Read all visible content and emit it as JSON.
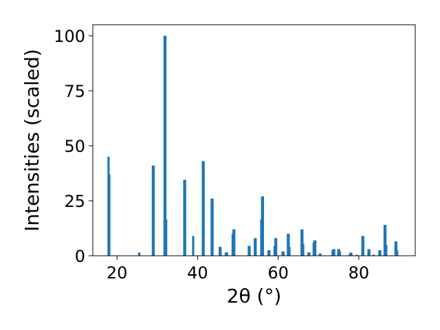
{
  "chart_data": {
    "type": "bar",
    "xlabel": "2θ (°)",
    "ylabel": "Intensities (scaled)",
    "xlim": [
      14,
      94
    ],
    "ylim": [
      0,
      105
    ],
    "xticks": [
      20,
      40,
      60,
      80
    ],
    "yticks": [
      0,
      25,
      50,
      75,
      100
    ],
    "bar_color": "#1f77b4",
    "grid": false,
    "peaks": [
      {
        "x": 17.9,
        "y": 45
      },
      {
        "x": 18.1,
        "y": 37
      },
      {
        "x": 25.5,
        "y": 1.5
      },
      {
        "x": 28.9,
        "y": 41
      },
      {
        "x": 29.1,
        "y": 41
      },
      {
        "x": 31.8,
        "y": 100
      },
      {
        "x": 32.0,
        "y": 100
      },
      {
        "x": 32.2,
        "y": 16.5
      },
      {
        "x": 36.7,
        "y": 34.5
      },
      {
        "x": 36.9,
        "y": 34.5
      },
      {
        "x": 38.9,
        "y": 9
      },
      {
        "x": 41.3,
        "y": 43
      },
      {
        "x": 41.5,
        "y": 43
      },
      {
        "x": 43.5,
        "y": 26
      },
      {
        "x": 43.7,
        "y": 26
      },
      {
        "x": 45.5,
        "y": 4
      },
      {
        "x": 45.7,
        "y": 4
      },
      {
        "x": 47.0,
        "y": 1.5
      },
      {
        "x": 47.3,
        "y": 1.5
      },
      {
        "x": 48.7,
        "y": 10
      },
      {
        "x": 48.9,
        "y": 12
      },
      {
        "x": 49.1,
        "y": 12
      },
      {
        "x": 52.7,
        "y": 4.5
      },
      {
        "x": 52.9,
        "y": 4.5
      },
      {
        "x": 54.2,
        "y": 8
      },
      {
        "x": 54.4,
        "y": 8
      },
      {
        "x": 55.8,
        "y": 16.5
      },
      {
        "x": 56.0,
        "y": 27
      },
      {
        "x": 56.2,
        "y": 27
      },
      {
        "x": 57.6,
        "y": 2.5
      },
      {
        "x": 57.8,
        "y": 2.5
      },
      {
        "x": 59.1,
        "y": 4.5
      },
      {
        "x": 59.3,
        "y": 8
      },
      {
        "x": 59.5,
        "y": 8
      },
      {
        "x": 61.1,
        "y": 2
      },
      {
        "x": 61.3,
        "y": 2
      },
      {
        "x": 62.4,
        "y": 10
      },
      {
        "x": 62.6,
        "y": 10
      },
      {
        "x": 62.8,
        "y": 4
      },
      {
        "x": 65.8,
        "y": 12
      },
      {
        "x": 66.0,
        "y": 12
      },
      {
        "x": 66.2,
        "y": 5.5
      },
      {
        "x": 67.5,
        "y": 1.5
      },
      {
        "x": 67.7,
        "y": 1.5
      },
      {
        "x": 68.8,
        "y": 6
      },
      {
        "x": 69.0,
        "y": 7
      },
      {
        "x": 69.2,
        "y": 7
      },
      {
        "x": 70.3,
        "y": 1
      },
      {
        "x": 70.5,
        "y": 1
      },
      {
        "x": 73.5,
        "y": 2.5
      },
      {
        "x": 73.7,
        "y": 3
      },
      {
        "x": 73.9,
        "y": 3
      },
      {
        "x": 74.9,
        "y": 3
      },
      {
        "x": 75.1,
        "y": 3
      },
      {
        "x": 75.3,
        "y": 2
      },
      {
        "x": 77.8,
        "y": 1
      },
      {
        "x": 78.0,
        "y": 1.5
      },
      {
        "x": 78.2,
        "y": 1
      },
      {
        "x": 79.5,
        "y": 0.5
      },
      {
        "x": 80.9,
        "y": 9
      },
      {
        "x": 81.1,
        "y": 9
      },
      {
        "x": 82.4,
        "y": 3
      },
      {
        "x": 82.6,
        "y": 3
      },
      {
        "x": 83.7,
        "y": 0.5
      },
      {
        "x": 85.1,
        "y": 2.5
      },
      {
        "x": 85.3,
        "y": 2.5
      },
      {
        "x": 86.4,
        "y": 14
      },
      {
        "x": 86.6,
        "y": 14
      },
      {
        "x": 86.8,
        "y": 5
      },
      {
        "x": 89.1,
        "y": 6.5
      },
      {
        "x": 89.3,
        "y": 6.5
      },
      {
        "x": 89.5,
        "y": 2.5
      }
    ]
  }
}
